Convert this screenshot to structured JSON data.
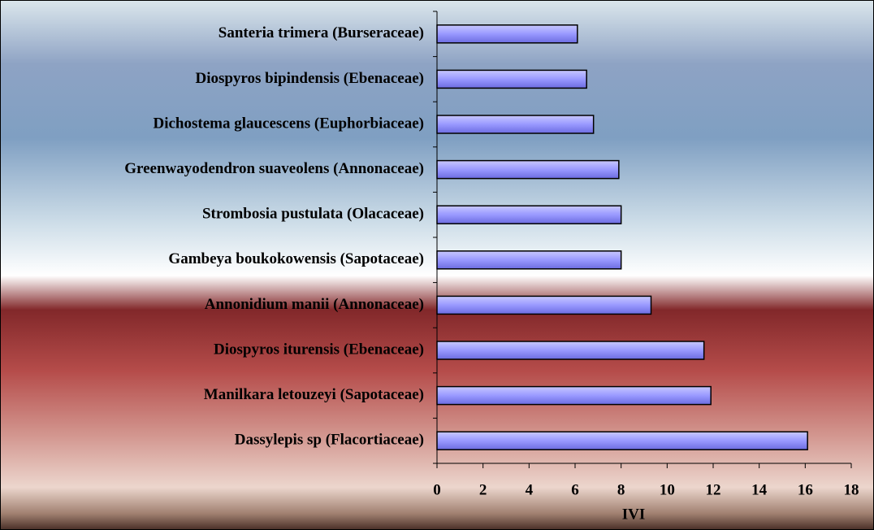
{
  "chart_data": {
    "type": "barh",
    "categories": [
      "Santeria trimera (Burseraceae)",
      "Diospyros bipindensis (Ebenaceae)",
      "Dichostema glaucescens (Euphorbiaceae)",
      "Greenwayodendron suaveolens (Annonaceae)",
      "Strombosia pustulata (Olacaceae)",
      "Gambeya boukokowensis (Sapotaceae)",
      "Annonidium manii (Annonaceae)",
      "Diospyros iturensis (Ebenaceae)",
      "Manilkara letouzeyi (Sapotaceae)",
      "Dassylepis sp (Flacortiaceae)"
    ],
    "values": [
      6.1,
      6.5,
      6.8,
      7.9,
      8.0,
      8.0,
      9.3,
      11.6,
      11.9,
      16.1
    ],
    "color": "#9999ff",
    "xlabel": "IVI",
    "xlim": [
      0,
      18
    ],
    "xticks": [
      0,
      2,
      4,
      6,
      8,
      10,
      12,
      14,
      16,
      18
    ]
  }
}
